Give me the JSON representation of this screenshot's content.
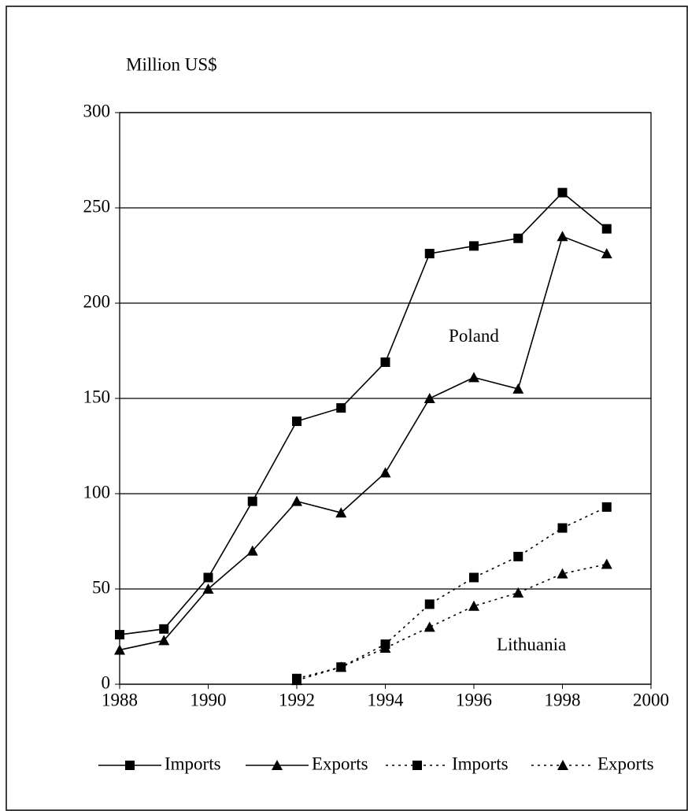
{
  "chart_data": {
    "type": "line",
    "y_label": "Million US$",
    "x": [
      1988,
      1989,
      1990,
      1991,
      1992,
      1993,
      1994,
      1995,
      1996,
      1997,
      1998,
      1999
    ],
    "series": [
      {
        "name": "Imports",
        "color": "#000000",
        "marker": "square",
        "dash": "solid",
        "values": [
          26,
          29,
          56,
          96,
          138,
          145,
          169,
          226,
          230,
          234,
          258,
          239
        ]
      },
      {
        "name": "Exports",
        "color": "#000000",
        "marker": "triangle",
        "dash": "solid",
        "values": [
          18,
          23,
          50,
          70,
          96,
          90,
          111,
          150,
          161,
          155,
          235,
          226
        ]
      },
      {
        "name": "Imports",
        "color": "#000000",
        "marker": "square",
        "dash": "dotted",
        "values": [
          null,
          null,
          null,
          null,
          3,
          9,
          21,
          42,
          56,
          67,
          82,
          93
        ]
      },
      {
        "name": "Exports",
        "color": "#000000",
        "marker": "triangle",
        "dash": "dotted",
        "values": [
          null,
          null,
          null,
          null,
          2,
          9,
          19,
          30,
          41,
          48,
          58,
          63
        ]
      }
    ],
    "annotations": [
      {
        "text": "Poland",
        "x": 1996,
        "y": 182
      },
      {
        "text": "Lithuania",
        "x": 1997.3,
        "y": 20
      }
    ],
    "xlim": [
      1988,
      2000
    ],
    "xticks": [
      1988,
      1990,
      1992,
      1994,
      1996,
      1998,
      2000
    ],
    "ylim": [
      0,
      300
    ],
    "yticks": [
      0,
      50,
      100,
      150,
      200,
      250,
      300
    ],
    "grid": true,
    "legend": "bottom"
  }
}
